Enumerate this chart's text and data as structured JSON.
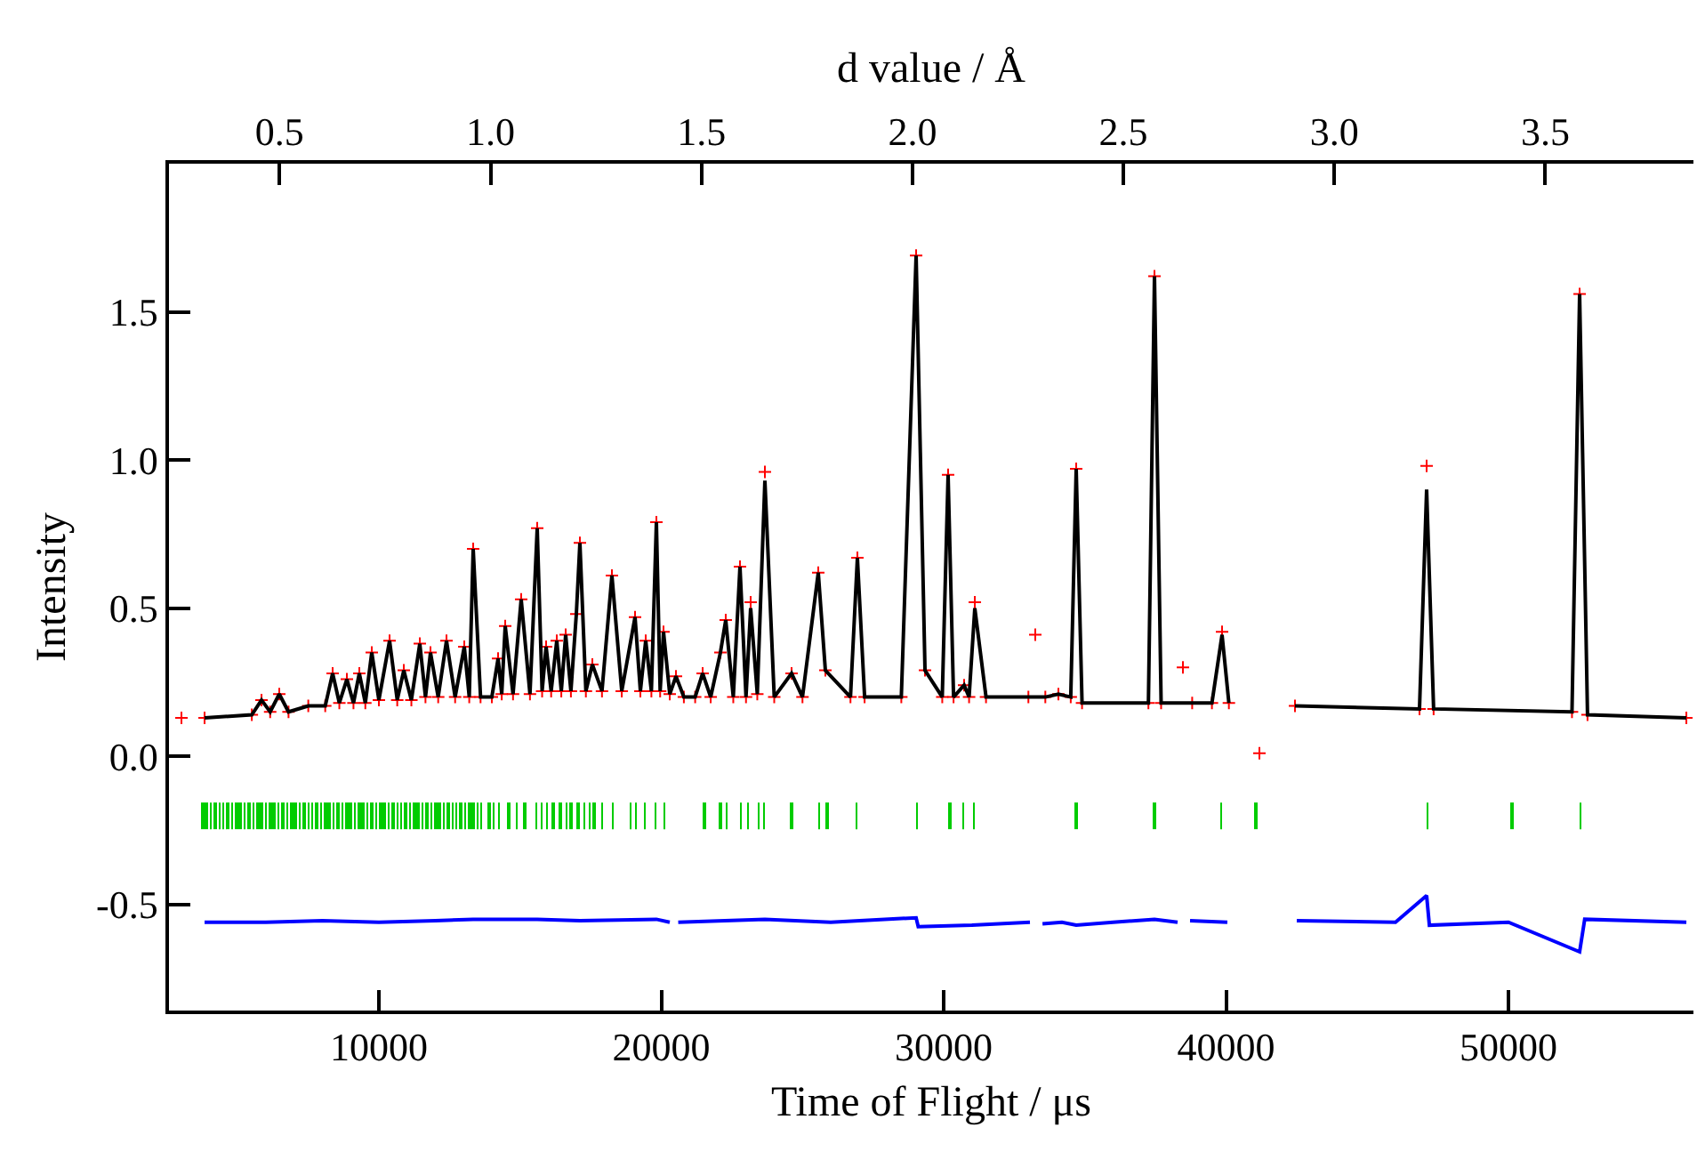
{
  "chart_data": {
    "type": "line",
    "xlabel": "Time of Flight / μs",
    "ylabel": "Intensity",
    "x2label": "d value / Å",
    "xlim": [
      2567,
      56551
    ],
    "xticks": [
      10000,
      20000,
      30000,
      40000,
      50000
    ],
    "ylim": [
      -0.858,
      2.0
    ],
    "yticks": [
      {
        "value": 1.5,
        "label": "1.5"
      },
      {
        "value": 1.0,
        "label": "1.0"
      },
      {
        "value": 0.5,
        "label": "0.5"
      },
      {
        "value": 0.0,
        "label": "0.0"
      },
      {
        "value": -0.5,
        "label": "-0.5"
      }
    ],
    "x2lim": [
      0.238,
      3.851
    ],
    "x2ticks": [
      {
        "value": 0.5,
        "label": "0.5"
      },
      {
        "value": 1.0,
        "label": "1.0"
      },
      {
        "value": 1.5,
        "label": "1.5"
      },
      {
        "value": 2.0,
        "label": "2.0"
      },
      {
        "value": 2.5,
        "label": "2.5"
      },
      {
        "value": 3.0,
        "label": "3.0"
      },
      {
        "value": 3.5,
        "label": "3.5"
      }
    ],
    "x": [
      3008,
      3827,
      5500,
      5843,
      6150,
      6472,
      6800,
      7500,
      8100,
      8362,
      8600,
      8866,
      9100,
      9307,
      9520,
      9748,
      10000,
      10378,
      10650,
      10882,
      11150,
      11449,
      11650,
      11827,
      12100,
      12394,
      12700,
      13024,
      13200,
      13339,
      13600,
      14000,
      14221,
      14350,
      14473,
      14750,
      15039,
      15350,
      15606,
      15780,
      15921,
      16100,
      16299,
      16460,
      16614,
      16800,
      16992,
      17118,
      17330,
      17559,
      17900,
      18252,
      18600,
      19071,
      19260,
      19449,
      19650,
      19827,
      19960,
      20079,
      20300,
      20520,
      20800,
      21200,
      21465,
      21750,
      22094,
      22283,
      22550,
      22787,
      23000,
      23165,
      23400,
      23669,
      24000,
      24614,
      25000,
      25559,
      25811,
      26700,
      26945,
      27200,
      28500,
      29024,
      29339,
      29950,
      30157,
      30350,
      30724,
      30900,
      31103,
      31500,
      33000,
      33244,
      33600,
      34063,
      34500,
      34693,
      34900,
      37250,
      37465,
      37700,
      38473,
      38800,
      39500,
      39858,
      40100,
      41181,
      42441,
      46850,
      47102,
      47350,
      52250,
      52520,
      52800,
      56300
    ],
    "series": [
      {
        "type": "scatter",
        "marker": "cross",
        "color": "#ff0000",
        "values": [
          0.13,
          0.13,
          0.14,
          0.19,
          0.15,
          0.21,
          0.15,
          0.17,
          0.17,
          0.28,
          0.18,
          0.26,
          0.18,
          0.28,
          0.18,
          0.35,
          0.19,
          0.39,
          0.19,
          0.29,
          0.19,
          0.38,
          0.2,
          0.35,
          0.2,
          0.39,
          0.2,
          0.37,
          0.2,
          0.7,
          0.2,
          0.2,
          0.33,
          0.21,
          0.44,
          0.21,
          0.53,
          0.21,
          0.77,
          0.22,
          0.37,
          0.22,
          0.39,
          0.22,
          0.41,
          0.22,
          0.48,
          0.72,
          0.22,
          0.31,
          0.22,
          0.61,
          0.22,
          0.47,
          0.22,
          0.39,
          0.22,
          0.79,
          0.22,
          0.42,
          0.21,
          0.27,
          0.2,
          0.2,
          0.28,
          0.2,
          0.35,
          0.46,
          0.2,
          0.64,
          0.2,
          0.52,
          0.21,
          0.96,
          0.2,
          0.28,
          0.2,
          0.62,
          0.29,
          0.2,
          0.67,
          0.2,
          0.2,
          1.69,
          0.29,
          0.2,
          0.95,
          0.2,
          0.24,
          0.2,
          0.52,
          0.2,
          0.2,
          0.41,
          0.2,
          0.21,
          0.2,
          0.97,
          0.18,
          0.18,
          1.62,
          0.18,
          0.3,
          0.18,
          0.18,
          0.42,
          0.18,
          0.01,
          0.17,
          0.16,
          0.98,
          0.16,
          0.15,
          1.56,
          0.14,
          0.13
        ]
      },
      {
        "marker": "none",
        "color": "#000000",
        "values": [
          null,
          0.13,
          0.14,
          0.19,
          0.15,
          0.21,
          0.15,
          0.17,
          0.17,
          0.28,
          0.18,
          0.26,
          0.18,
          0.28,
          0.18,
          0.35,
          0.19,
          0.39,
          0.19,
          0.29,
          0.19,
          0.38,
          0.2,
          0.35,
          0.2,
          0.39,
          0.2,
          0.37,
          0.2,
          0.7,
          0.2,
          0.2,
          0.33,
          0.21,
          0.44,
          0.21,
          0.53,
          0.21,
          0.77,
          0.22,
          0.37,
          0.22,
          0.39,
          0.22,
          0.41,
          0.22,
          0.48,
          0.72,
          0.22,
          0.31,
          0.22,
          0.61,
          0.22,
          0.47,
          0.22,
          0.39,
          0.22,
          0.79,
          0.22,
          0.42,
          0.21,
          0.27,
          0.2,
          0.2,
          0.28,
          0.2,
          0.35,
          0.46,
          0.2,
          0.64,
          0.2,
          0.5,
          0.21,
          0.93,
          0.2,
          0.28,
          0.2,
          0.62,
          0.29,
          0.2,
          0.67,
          0.2,
          0.2,
          1.69,
          0.29,
          0.2,
          0.95,
          0.2,
          0.24,
          0.2,
          0.5,
          0.2,
          0.2,
          0.2,
          0.2,
          0.21,
          0.2,
          0.97,
          0.18,
          0.18,
          1.62,
          0.18,
          0.18,
          0.18,
          0.18,
          0.41,
          0.18,
          null,
          0.17,
          0.16,
          0.9,
          0.16,
          0.15,
          1.56,
          0.14,
          0.13
        ]
      },
      {
        "type": "bar",
        "color": "#00cc00",
        "base": [
          -0.246,
          -0.246,
          -0.246,
          -0.246,
          -0.246,
          -0.246,
          -0.246,
          -0.246,
          -0.246,
          -0.246,
          -0.246,
          -0.246,
          -0.246,
          -0.246,
          -0.246,
          -0.246,
          -0.246,
          -0.246,
          -0.246,
          -0.246,
          -0.246,
          -0.246,
          -0.246,
          -0.246,
          -0.246,
          -0.246,
          -0.246,
          -0.246,
          -0.246,
          -0.246,
          -0.246,
          -0.246,
          -0.246,
          -0.246,
          -0.246,
          -0.246,
          -0.246,
          -0.246,
          -0.246,
          -0.246,
          -0.246,
          -0.246,
          -0.246,
          -0.246,
          -0.246,
          -0.246,
          -0.246,
          -0.246,
          -0.246,
          -0.246,
          -0.246,
          -0.246,
          -0.246,
          -0.246,
          -0.246,
          -0.246,
          -0.246,
          -0.246,
          -0.246,
          -0.246,
          -0.246,
          -0.246,
          -0.246,
          -0.246,
          -0.246,
          -0.246,
          -0.246,
          -0.246,
          -0.246,
          -0.246,
          -0.246,
          -0.246,
          -0.246,
          -0.246,
          -0.246,
          -0.246,
          -0.246,
          -0.246,
          -0.246,
          -0.246,
          -0.246,
          -0.246,
          -0.246,
          -0.246,
          -0.246,
          -0.246,
          -0.246,
          -0.246,
          -0.246,
          -0.246,
          -0.246,
          -0.246,
          -0.246,
          -0.246,
          -0.246,
          -0.246,
          -0.246,
          -0.246,
          -0.246,
          -0.246,
          -0.246,
          -0.246,
          -0.246,
          -0.246,
          -0.246,
          -0.246,
          -0.246,
          -0.246,
          -0.246,
          -0.246,
          -0.246,
          -0.246,
          -0.246
        ],
        "x": [
          3750,
          3900,
          4050,
          4200,
          4350,
          4500,
          4650,
          4800,
          4950,
          5100,
          5250,
          5400,
          5550,
          5700,
          5850,
          6000,
          6150,
          6300,
          6450,
          6600,
          6750,
          6900,
          7050,
          7200,
          7350,
          7500,
          7650,
          7800,
          7950,
          8100,
          8250,
          8400,
          8550,
          8700,
          8850,
          9000,
          9150,
          9300,
          9450,
          9600,
          9750,
          9900,
          10050,
          10200,
          10350,
          10500,
          10650,
          10800,
          10950,
          11100,
          11250,
          11400,
          11550,
          11700,
          11850,
          12000,
          12150,
          12300,
          12450,
          12600,
          12750,
          12900,
          13050,
          13200,
          13350,
          13500,
          13633,
          13906,
          14074,
          14242,
          14599,
          14893,
          15165,
          15585,
          15753,
          15942,
          16173,
          16425,
          16635,
          16803,
          17055,
          17265,
          17475,
          17622,
          17916,
          18270,
          18900,
          19089,
          19425,
          19782,
          20097,
          21528,
          22094,
          22304,
          22829,
          23081,
          23459,
          23627,
          24614,
          25601,
          25874,
          26925,
          29067,
          30220,
          30704,
          31082,
          34693,
          37465,
          39837,
          41055,
          47122,
          50126,
          52538
        ],
        "values": [
          0.09,
          0.09,
          0.09,
          0.09,
          0.09,
          0.09,
          0.09,
          0.09,
          0.09,
          0.09,
          0.09,
          0.09,
          0.09,
          0.09,
          0.09,
          0.09,
          0.09,
          0.09,
          0.09,
          0.09,
          0.09,
          0.09,
          0.09,
          0.09,
          0.09,
          0.09,
          0.09,
          0.09,
          0.09,
          0.09,
          0.09,
          0.09,
          0.09,
          0.09,
          0.09,
          0.09,
          0.09,
          0.09,
          0.09,
          0.09,
          0.09,
          0.09,
          0.09,
          0.09,
          0.09,
          0.09,
          0.09,
          0.09,
          0.09,
          0.09,
          0.09,
          0.09,
          0.09,
          0.09,
          0.09,
          0.09,
          0.09,
          0.09,
          0.09,
          0.09,
          0.09,
          0.09,
          0.09,
          0.09,
          0.09,
          0.09,
          0.09,
          0.09,
          0.09,
          0.09,
          0.09,
          0.09,
          0.09,
          0.09,
          0.09,
          0.09,
          0.09,
          0.09,
          0.09,
          0.09,
          0.09,
          0.09,
          0.09,
          0.09,
          0.09,
          0.09,
          0.09,
          0.09,
          0.09,
          0.09,
          0.09,
          0.09,
          0.09,
          0.09,
          0.09,
          0.09,
          0.09,
          0.09,
          0.09,
          0.09,
          0.09,
          0.09,
          0.09,
          0.09,
          0.09,
          0.09,
          0.09,
          0.09,
          0.09,
          0.09,
          0.09,
          0.09,
          0.09
        ]
      },
      {
        "marker": "none",
        "color": "#0000ff",
        "x": [
          3827,
          6000,
          8000,
          10000,
          12000,
          13339,
          15606,
          17118,
          19827,
          20300,
          20394,
          20600,
          23669,
          26000,
          29024,
          29100,
          31000,
          33055,
          33150,
          33500,
          34189,
          34693,
          36000,
          37465,
          38284,
          38500,
          38725,
          40046,
          41000,
          42504,
          46000,
          47102,
          47200,
          50000,
          52520,
          52700,
          56300
        ],
        "values": [
          -0.56,
          -0.56,
          -0.555,
          -0.56,
          -0.555,
          -0.55,
          -0.55,
          -0.555,
          -0.55,
          -0.56,
          null,
          -0.56,
          -0.55,
          -0.56,
          -0.545,
          -0.575,
          -0.57,
          -0.56,
          null,
          -0.565,
          -0.56,
          -0.57,
          -0.56,
          -0.55,
          -0.56,
          null,
          -0.555,
          -0.56,
          null,
          -0.555,
          -0.56,
          -0.47,
          -0.57,
          -0.56,
          -0.66,
          -0.55,
          -0.56
        ]
      }
    ]
  }
}
